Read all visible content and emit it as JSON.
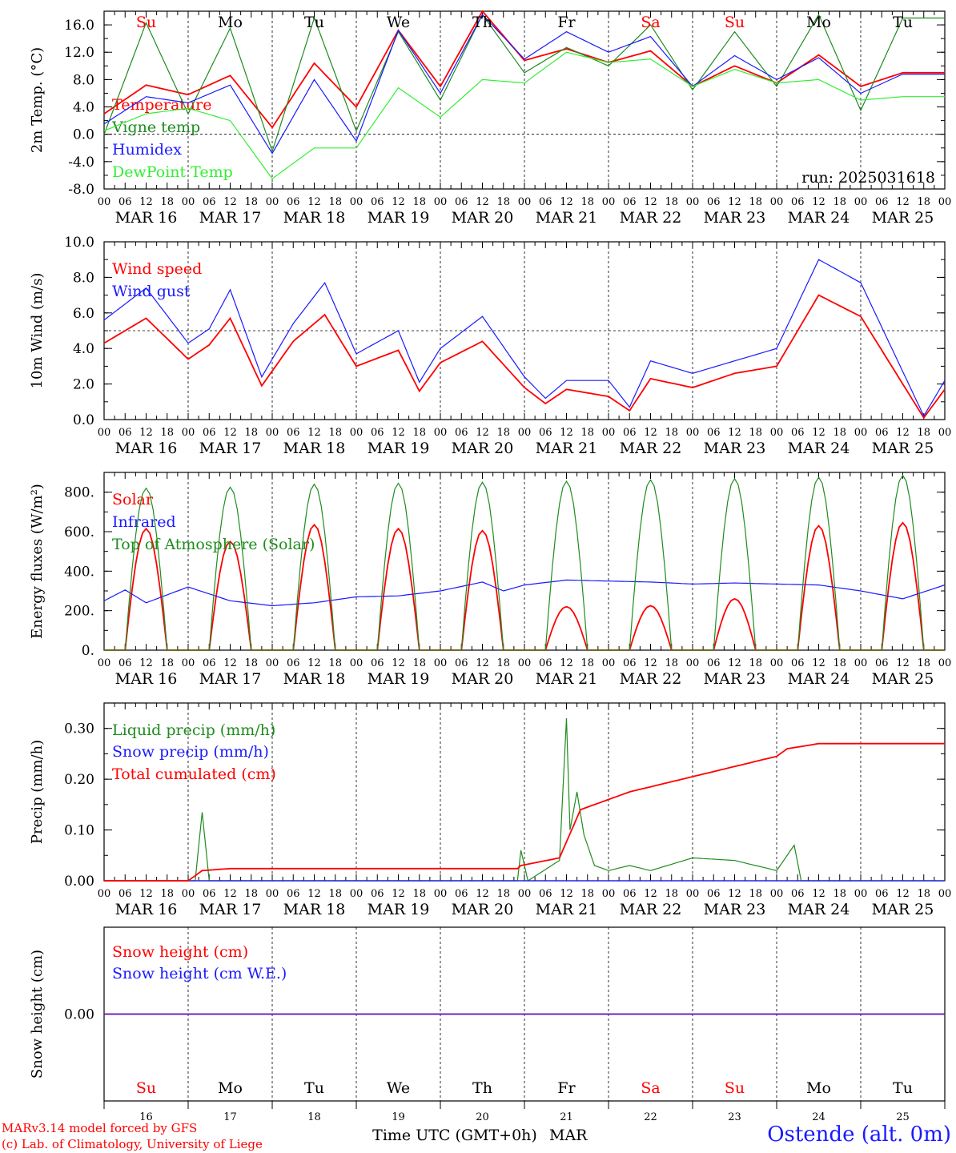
{
  "chart_data": {
    "type": "line",
    "run_label": "run: 2025031618",
    "x_hour_ticks": [
      "00",
      "06",
      "12",
      "18"
    ],
    "dates": [
      "MAR 16",
      "MAR 17",
      "MAR 18",
      "MAR 19",
      "MAR 20",
      "MAR 21",
      "MAR 22",
      "MAR 23",
      "MAR 24",
      "MAR 25"
    ],
    "weekdays": [
      "Su",
      "Mo",
      "Tu",
      "We",
      "Th",
      "Fr",
      "Sa",
      "Su",
      "Mo",
      "Tu"
    ],
    "weekend": [
      true,
      false,
      false,
      false,
      false,
      false,
      true,
      true,
      false,
      false
    ],
    "day_numbers": [
      "16",
      "17",
      "18",
      "19",
      "20",
      "21",
      "22",
      "23",
      "24",
      "25"
    ],
    "xlabel": "Time UTC (GMT+0h)",
    "xlabel_month": "MAR",
    "colors": {
      "red": "#ff0000",
      "green": "#1e8c1e",
      "blue": "#1a1aff",
      "lightgreen": "#33ee33"
    },
    "panels": [
      {
        "id": "temp",
        "ylabel": "2m Temp. (°C)",
        "ylim": [
          -8,
          18
        ],
        "yticks": [
          "-8.0",
          "-4.0",
          "0.0",
          "4.0",
          "8.0",
          "12.0",
          "16.0"
        ],
        "ytick_values": [
          -8,
          -4,
          0,
          4,
          8,
          12,
          16
        ],
        "ref_line": 0,
        "series": [
          {
            "name": "Temperature",
            "color": "red",
            "x_hours": [
              0,
              12,
              24,
              36,
              48,
              60,
              72,
              84,
              96,
              108,
              120,
              132,
              144,
              156,
              168,
              180,
              192,
              204,
              216,
              228
            ],
            "values": [
              3,
              7.2,
              5.8,
              8.6,
              1,
              10.4,
              4,
              15.2,
              7,
              18,
              10.8,
              12.5,
              10.5,
              12.2,
              7,
              10,
              7.5,
              11.6,
              7,
              9
            ]
          },
          {
            "name": "Vigne temp",
            "color": "green",
            "x_hours": [
              0,
              12,
              24,
              36,
              48,
              60,
              72,
              84,
              96,
              108,
              120,
              132,
              144,
              156,
              168,
              180,
              192,
              204,
              216,
              228
            ],
            "values": [
              0,
              16.3,
              3,
              15.5,
              -2.5,
              17,
              0.5,
              15,
              5,
              17.5,
              9,
              12.7,
              10,
              16,
              6.5,
              15,
              7,
              17.5,
              3.5,
              17
            ]
          },
          {
            "name": "Humidex",
            "color": "blue",
            "x_hours": [
              0,
              12,
              24,
              36,
              48,
              60,
              72,
              84,
              96,
              108,
              120,
              132,
              144,
              156,
              168,
              180,
              192,
              204,
              216,
              228
            ],
            "values": [
              1.5,
              5.5,
              4.6,
              7.2,
              -2.8,
              8,
              -1,
              15.2,
              6,
              17.5,
              11,
              15,
              12,
              14.3,
              7,
              11.5,
              8,
              11.2,
              6,
              8.8
            ]
          },
          {
            "name": "DewPoint Temp",
            "color": "lightgreen",
            "x_hours": [
              0,
              12,
              24,
              36,
              48,
              60,
              72,
              84,
              96,
              108,
              120,
              132,
              144,
              156,
              168,
              180,
              192,
              204,
              216,
              228
            ],
            "values": [
              0.5,
              3,
              3.8,
              2,
              -6.5,
              -2,
              -2,
              6.8,
              2.5,
              8,
              7.5,
              12,
              10.5,
              11,
              7,
              9.5,
              7.5,
              8,
              5,
              5.5
            ]
          }
        ]
      },
      {
        "id": "wind",
        "ylabel": "10m Wind (m/s)",
        "ylim": [
          0,
          10
        ],
        "yticks": [
          "0.0",
          "2.0",
          "4.0",
          "6.0",
          "8.0",
          "10.0"
        ],
        "ytick_values": [
          0,
          2,
          4,
          6,
          8,
          10
        ],
        "ref_line": 5,
        "series": [
          {
            "name": "Wind speed",
            "color": "red",
            "x_hours": [
              0,
              12,
              24,
              30,
              36,
              45,
              54,
              63,
              72,
              84,
              90,
              96,
              108,
              120,
              126,
              132,
              144,
              150,
              156,
              168,
              180,
              192,
              204,
              216,
              234,
              240
            ],
            "values": [
              4.3,
              5.7,
              3.4,
              4.2,
              5.7,
              1.9,
              4.4,
              5.9,
              3,
              3.9,
              1.6,
              3.2,
              4.4,
              1.8,
              0.9,
              1.7,
              1.3,
              0.5,
              2.3,
              1.8,
              2.6,
              3,
              7,
              5.8,
              0.1,
              1.7
            ]
          },
          {
            "name": "Wind gust",
            "color": "blue",
            "x_hours": [
              0,
              12,
              24,
              30,
              36,
              45,
              54,
              63,
              72,
              84,
              90,
              96,
              108,
              120,
              126,
              132,
              144,
              150,
              156,
              168,
              180,
              192,
              204,
              216,
              234,
              240
            ],
            "values": [
              5.6,
              7.4,
              4.3,
              5.1,
              7.3,
              2.4,
              5.4,
              7.7,
              3.7,
              5,
              2.1,
              4,
              5.8,
              2.4,
              1.2,
              2.2,
              2.2,
              0.7,
              3.3,
              2.6,
              3.3,
              4,
              9,
              7.7,
              0.2,
              2.2
            ]
          }
        ]
      },
      {
        "id": "energy",
        "ylabel": "Energy fluxes (W/m²)",
        "ylim": [
          0,
          900
        ],
        "yticks": [
          "0.",
          "200.",
          "400.",
          "600.",
          "800."
        ],
        "ytick_values": [
          0,
          200,
          400,
          600,
          800
        ],
        "series": [
          {
            "name": "Solar",
            "color": "red",
            "day_peaks": [
              615,
              550,
              635,
              615,
              605,
              220,
              225,
              260,
              630,
              645
            ]
          },
          {
            "name": "Infrared",
            "color": "blue",
            "x_hours": [
              0,
              6,
              12,
              24,
              36,
              48,
              60,
              72,
              84,
              96,
              108,
              114,
              120,
              132,
              144,
              156,
              168,
              180,
              192,
              204,
              216,
              228,
              240
            ],
            "values": [
              250,
              305,
              240,
              320,
              250,
              225,
              240,
              270,
              275,
              300,
              345,
              300,
              330,
              355,
              350,
              345,
              335,
              340,
              335,
              330,
              300,
              260,
              330
            ]
          },
          {
            "name": "Top of Atmosphere (Solar)",
            "color": "green",
            "day_peaks": [
              820,
              825,
              840,
              845,
              850,
              855,
              862,
              868,
              875,
              885
            ]
          }
        ]
      },
      {
        "id": "precip",
        "ylabel": "Precip (mm/h)",
        "ylim": [
          0,
          0.35
        ],
        "yticks": [
          "0.00",
          "0.10",
          "0.20",
          "0.30"
        ],
        "ytick_values": [
          0,
          0.1,
          0.2,
          0.3
        ],
        "series": [
          {
            "name": "Liquid precip (mm/h)",
            "color": "green",
            "x_hours": [
              0,
              26,
              28,
              30,
              118,
              119,
              121,
              130,
              132,
              133,
              135,
              137,
              140,
              144,
              150,
              156,
              168,
              180,
              192,
              197,
              199,
              210,
              240
            ],
            "values": [
              0,
              0,
              0.135,
              0,
              0,
              0.06,
              0,
              0.04,
              0.32,
              0.1,
              0.175,
              0.09,
              0.03,
              0.02,
              0.03,
              0.02,
              0.045,
              0.04,
              0.02,
              0.07,
              0,
              0,
              0
            ]
          },
          {
            "name": "Snow precip (mm/h)",
            "color": "blue",
            "x_hours": [
              0,
              240
            ],
            "values": [
              0,
              0
            ]
          },
          {
            "name": "Total cumulated (cm)",
            "color": "red",
            "x_hours": [
              0,
              24,
              28,
              36,
              118,
              119,
              130,
              136,
              144,
              150,
              156,
              168,
              180,
              192,
              195,
              204,
              240
            ],
            "values": [
              0,
              0,
              0.02,
              0.024,
              0.024,
              0.03,
              0.045,
              0.14,
              0.16,
              0.175,
              0.185,
              0.205,
              0.225,
              0.245,
              0.26,
              0.27,
              0.27
            ]
          }
        ]
      },
      {
        "id": "snow",
        "ylabel": "Snow height (cm)",
        "ylim": [
          -0.5,
          0.5
        ],
        "yticks": [
          "0.00"
        ],
        "ytick_values": [
          0
        ],
        "series": [
          {
            "name": "Snow height (cm)",
            "color": "red",
            "x_hours": [
              0,
              240
            ],
            "values": [
              0,
              0
            ]
          },
          {
            "name": "Snow height (cm W.E.)",
            "color": "blue",
            "x_hours": [
              0,
              240
            ],
            "values": [
              0,
              0
            ]
          }
        ]
      }
    ]
  },
  "footer": {
    "credit_line1": "MARv3.14 model forced by GFS",
    "credit_line2": "(c) Lab. of Climatology, University of Liege",
    "station": "Ostende (alt. 0m)"
  }
}
